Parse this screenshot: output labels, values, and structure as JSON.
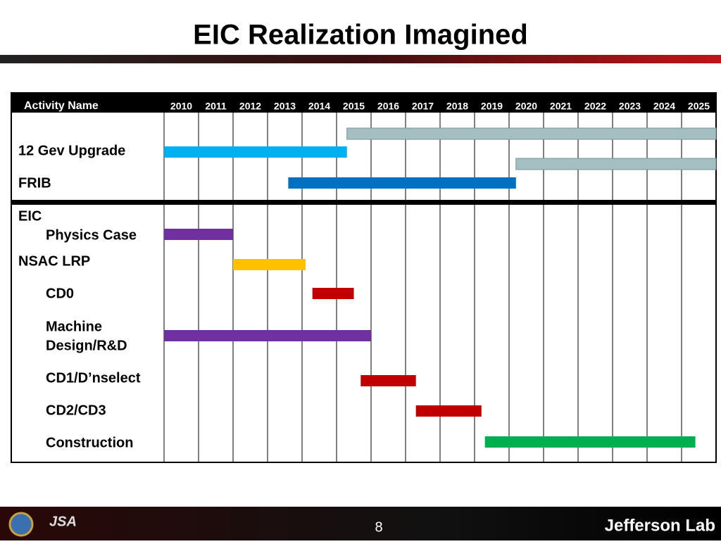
{
  "chart_data": {
    "type": "gantt",
    "title": "EIC Realization Imagined",
    "header": "Activity Name",
    "xlim": [
      2010,
      2026
    ],
    "xticks": [
      2010,
      2011,
      2012,
      2013,
      2014,
      2015,
      2016,
      2017,
      2018,
      2019,
      2020,
      2021,
      2022,
      2023,
      2024,
      2025
    ],
    "tasks": [
      {
        "label": null,
        "start": 2015.3,
        "end": 2026,
        "color": "#a3bfc2"
      },
      {
        "label": [
          "12 Gev Upgrade"
        ],
        "indent": false,
        "start": 2010,
        "end": 2015.3,
        "color": "#00b0f0"
      },
      {
        "label": null,
        "start": 2020.2,
        "end": 2026,
        "color": "#a3bfc2"
      },
      {
        "label": [
          "FRIB"
        ],
        "indent": false,
        "start": 2013.6,
        "end": 2020.2,
        "color": "#0070c0"
      },
      {
        "group": "EIC",
        "label": [
          "Physics Case"
        ],
        "indent": true,
        "start": 2010,
        "end": 2012,
        "color": "#7030a0"
      },
      {
        "label": [
          "NSAC LRP"
        ],
        "indent": false,
        "start": 2012,
        "end": 2014.1,
        "color": "#ffc000"
      },
      {
        "label": [
          "CD0"
        ],
        "indent": true,
        "start": 2014.3,
        "end": 2015.5,
        "color": "#c00000"
      },
      {
        "label": [
          "Machine",
          "Design/R&D"
        ],
        "indent": true,
        "start": 2010,
        "end": 2016,
        "color": "#7030a0"
      },
      {
        "label": [
          "CD1/D’nselect"
        ],
        "indent": true,
        "start": 2015.7,
        "end": 2017.3,
        "color": "#c00000"
      },
      {
        "label": [
          "CD2/CD3"
        ],
        "indent": true,
        "start": 2017.3,
        "end": 2019.2,
        "color": "#c00000"
      },
      {
        "label": [
          "Construction"
        ],
        "indent": true,
        "start": 2019.3,
        "end": 2025.4,
        "color": "#00b050"
      }
    ]
  },
  "footer": {
    "page_number": "8",
    "logo_left": "JSA",
    "logo_right": "Jefferson Lab"
  }
}
